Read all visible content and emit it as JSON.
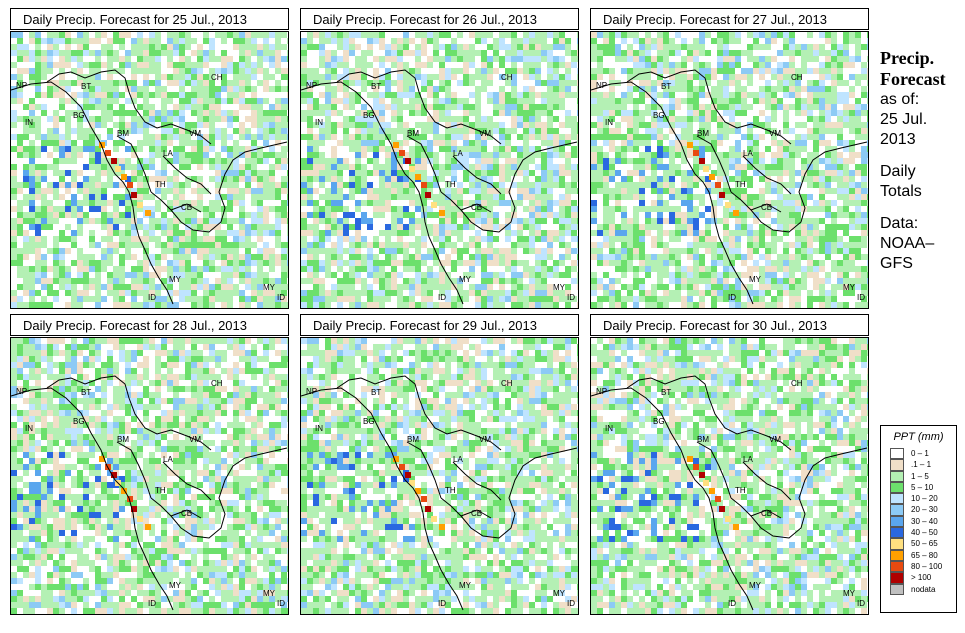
{
  "panels": [
    {
      "title": "Daily Precip. Forecast for  25 Jul., 2013"
    },
    {
      "title": "Daily Precip. Forecast for  26 Jul., 2013"
    },
    {
      "title": "Daily Precip. Forecast for  27 Jul., 2013"
    },
    {
      "title": "Daily Precip. Forecast for  28 Jul., 2013"
    },
    {
      "title": "Daily Precip. Forecast for  29 Jul., 2013"
    },
    {
      "title": "Daily Precip. Forecast for  30 Jul., 2013"
    }
  ],
  "country_labels": [
    "CH",
    "NP",
    "BT",
    "IN",
    "BG",
    "BM",
    "VM",
    "LA",
    "TH",
    "CB",
    "MY",
    "ID",
    "MY",
    "ID"
  ],
  "sidebar": {
    "line1": "Precip.",
    "line2": "Forecast",
    "line3": "as of:",
    "line4": "25 Jul.",
    "line5": "2013",
    "line6": "Daily",
    "line7": "Totals",
    "line8": "Data:",
    "line9": "NOAA–",
    "line10": "GFS"
  },
  "legend": {
    "title": "PPT (mm)",
    "items": [
      {
        "label": "0 – 1",
        "color": "#ffffff"
      },
      {
        "label": ".1 – 1",
        "color": "#f0dfc8"
      },
      {
        "label": "1 – 5",
        "color": "#b4f0b4"
      },
      {
        "label": "5 – 10",
        "color": "#6ce06c"
      },
      {
        "label": "10 – 20",
        "color": "#bfe4ff"
      },
      {
        "label": "20 – 30",
        "color": "#8ccaf5"
      },
      {
        "label": "30 – 40",
        "color": "#5aa6ee"
      },
      {
        "label": "40 – 50",
        "color": "#2a68e0"
      },
      {
        "label": "50 – 65",
        "color": "#ffe080"
      },
      {
        "label": "65 – 80",
        "color": "#ffa000"
      },
      {
        "label": "80 – 100",
        "color": "#e84a10"
      },
      {
        "label": "> 100",
        "color": "#b00000"
      },
      {
        "label": "nodata",
        "color": "#c0c0c0"
      }
    ]
  }
}
